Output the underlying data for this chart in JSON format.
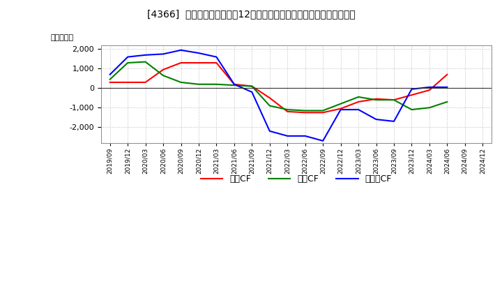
{
  "title": "[4366]  キャッシュフローの12か月移動合計の対前年同期増減額の推移",
  "ylabel": "（百万円）",
  "background_color": "#ffffff",
  "plot_bg_color": "#ffffff",
  "grid_color": "#bbbbbb",
  "x_labels": [
    "2019/09",
    "2019/12",
    "2020/03",
    "2020/06",
    "2020/09",
    "2020/12",
    "2021/03",
    "2021/06",
    "2021/09",
    "2021/12",
    "2022/03",
    "2022/06",
    "2022/09",
    "2022/12",
    "2023/03",
    "2023/06",
    "2023/09",
    "2023/12",
    "2024/03",
    "2024/06",
    "2024/09",
    "2024/12"
  ],
  "operating_cf": [
    300,
    300,
    300,
    950,
    1300,
    1300,
    1300,
    200,
    100,
    -500,
    -1200,
    -1250,
    -1250,
    -1050,
    -700,
    -550,
    -600,
    -350,
    -100,
    700,
    null,
    null
  ],
  "investing_cf": [
    450,
    1300,
    1350,
    650,
    300,
    200,
    200,
    150,
    100,
    -900,
    -1100,
    -1150,
    -1150,
    -800,
    -450,
    -600,
    -600,
    -1100,
    -1000,
    -700,
    null,
    null
  ],
  "free_cf": [
    700,
    1600,
    1700,
    1750,
    1950,
    1800,
    1600,
    200,
    -200,
    -2200,
    -2450,
    -2450,
    -2700,
    -1100,
    -1100,
    -1600,
    -1700,
    -50,
    50,
    50,
    null,
    null
  ],
  "ylim": [
    -2800,
    2200
  ],
  "yticks": [
    -2000,
    -1000,
    0,
    1000,
    2000
  ],
  "line_colors": {
    "operating": "#ff0000",
    "investing": "#008000",
    "free": "#0000ff"
  },
  "legend_labels": [
    "営業CF",
    "投資CF",
    "フリーCF"
  ]
}
